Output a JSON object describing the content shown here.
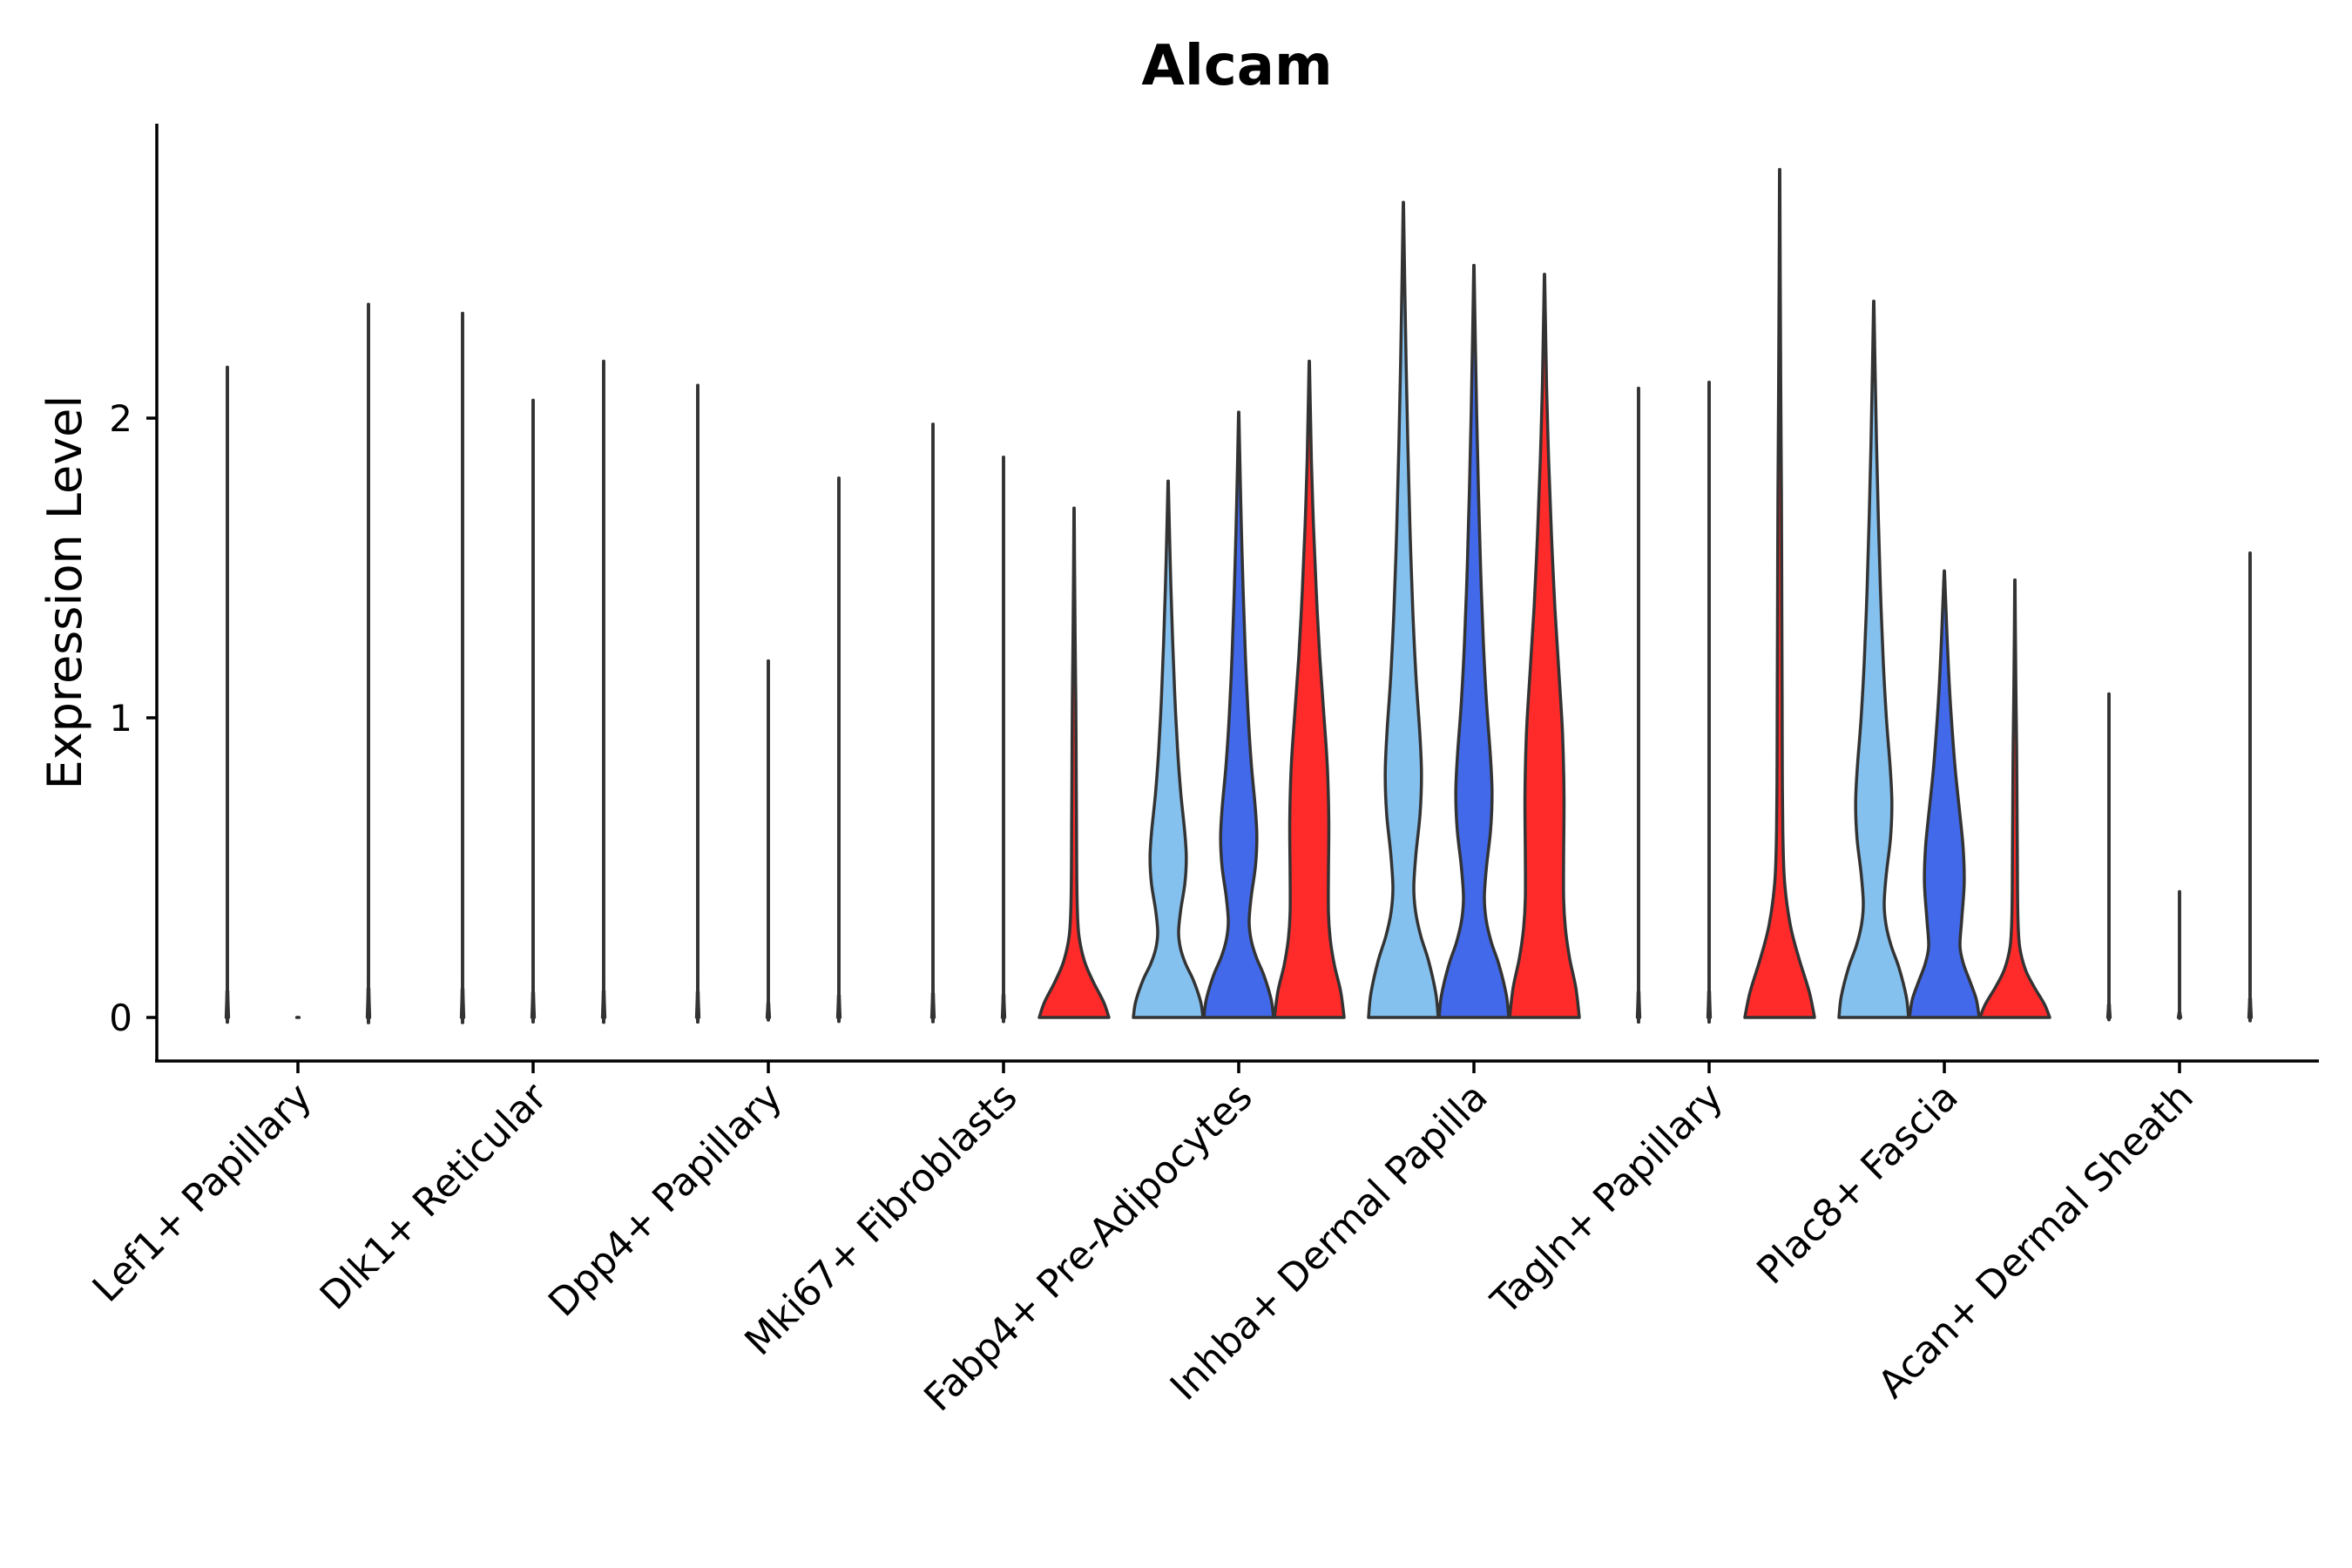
{
  "chart_data": {
    "type": "violin",
    "title": "Alcam",
    "ylabel": "Expression Level",
    "xlabel": "",
    "ylim": [
      -0.14,
      2.98
    ],
    "yticks": [
      0,
      1,
      2
    ],
    "grid": false,
    "legend": "none",
    "categories": [
      "Lef1+ Papillary",
      "Dlk1+ Reticular",
      "Dpp4+ Papillary",
      "Mki67+ Fibroblasts",
      "Fabp4+ Pre-Adipocytes",
      "Inhba+ Dermal Papilla",
      "Tagln+ Papillary",
      "Plac8+ Fascia",
      "Acan+ Dermal Sheath"
    ],
    "group_colors": [
      "#85C1EE",
      "#4169E9",
      "#FF2A2A"
    ],
    "violins": [
      {
        "category": 0,
        "group": 0,
        "max": 2.17,
        "shape": "flat"
      },
      {
        "category": 0,
        "group": 1,
        "max": 0,
        "shape": "flat"
      },
      {
        "category": 0,
        "group": 2,
        "max": 2.38,
        "shape": "flat"
      },
      {
        "category": 1,
        "group": 0,
        "max": 2.35,
        "shape": "flat"
      },
      {
        "category": 1,
        "group": 1,
        "max": 2.06,
        "shape": "flat"
      },
      {
        "category": 1,
        "group": 2,
        "max": 2.19,
        "shape": "flat"
      },
      {
        "category": 2,
        "group": 0,
        "max": 2.11,
        "shape": "flat"
      },
      {
        "category": 2,
        "group": 1,
        "max": 1.19,
        "shape": "flat"
      },
      {
        "category": 2,
        "group": 2,
        "max": 1.8,
        "shape": "flat"
      },
      {
        "category": 3,
        "group": 0,
        "max": 1.98,
        "shape": "flat"
      },
      {
        "category": 3,
        "group": 1,
        "max": 1.87,
        "shape": "flat"
      },
      {
        "category": 3,
        "group": 2,
        "max": 1.7,
        "shape": "low"
      },
      {
        "category": 4,
        "group": 0,
        "max": 1.79,
        "shape": "bimodal"
      },
      {
        "category": 4,
        "group": 1,
        "max": 2.02,
        "shape": "bimodal"
      },
      {
        "category": 4,
        "group": 2,
        "max": 2.19,
        "shape": "wide"
      },
      {
        "category": 5,
        "group": 0,
        "max": 2.72,
        "shape": "bimodal"
      },
      {
        "category": 5,
        "group": 1,
        "max": 2.51,
        "shape": "bimodal"
      },
      {
        "category": 5,
        "group": 2,
        "max": 2.48,
        "shape": "wide"
      },
      {
        "category": 6,
        "group": 0,
        "max": 2.1,
        "shape": "flat"
      },
      {
        "category": 6,
        "group": 1,
        "max": 2.12,
        "shape": "flat"
      },
      {
        "category": 6,
        "group": 2,
        "max": 2.83,
        "shape": "low"
      },
      {
        "category": 7,
        "group": 0,
        "max": 2.39,
        "shape": "bimodal"
      },
      {
        "category": 7,
        "group": 1,
        "max": 1.49,
        "shape": "mid"
      },
      {
        "category": 7,
        "group": 2,
        "max": 1.46,
        "shape": "low"
      },
      {
        "category": 8,
        "group": 0,
        "max": 1.08,
        "shape": "flat"
      },
      {
        "category": 8,
        "group": 1,
        "max": 0.42,
        "shape": "flat"
      },
      {
        "category": 8,
        "group": 2,
        "max": 1.55,
        "shape": "flat"
      }
    ]
  }
}
